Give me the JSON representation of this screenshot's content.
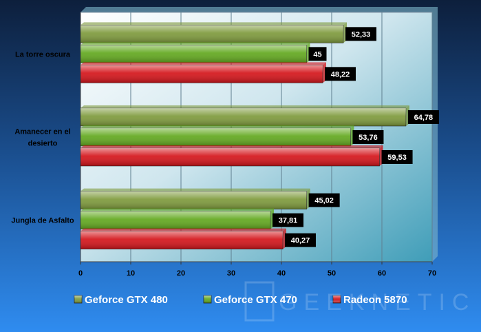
{
  "chart_data": {
    "type": "bar",
    "orientation": "horizontal",
    "categories": [
      "La torre oscura",
      "Amanecer en el desierto",
      "Jungla de Asfalto"
    ],
    "category_lines": [
      [
        "La torre oscura"
      ],
      [
        "Amanecer en el",
        "desierto"
      ],
      [
        "Jungla de Asfalto"
      ]
    ],
    "series": [
      {
        "name": "Geforce GTX 480",
        "values": [
          52.33,
          64.78,
          45.02
        ],
        "labels": [
          "52,33",
          "64,78",
          "45,02"
        ],
        "color": "#7e9a3c"
      },
      {
        "name": "Geforce GTX 470",
        "values": [
          45,
          53.76,
          37.81
        ],
        "labels": [
          "45",
          "53,76",
          "37,81"
        ],
        "color": "#62a81e"
      },
      {
        "name": "Radeon 5870",
        "values": [
          48.22,
          59.53,
          40.27
        ],
        "labels": [
          "48,22",
          "59,53",
          "40,27"
        ],
        "color": "#d4141a"
      }
    ],
    "xlim": [
      0,
      70
    ],
    "xticks": [
      "0",
      "10",
      "20",
      "30",
      "40",
      "50",
      "60",
      "70"
    ],
    "grid": true,
    "legend_position": "bottom"
  },
  "watermark": {
    "text": "GEEKNETIC"
  }
}
